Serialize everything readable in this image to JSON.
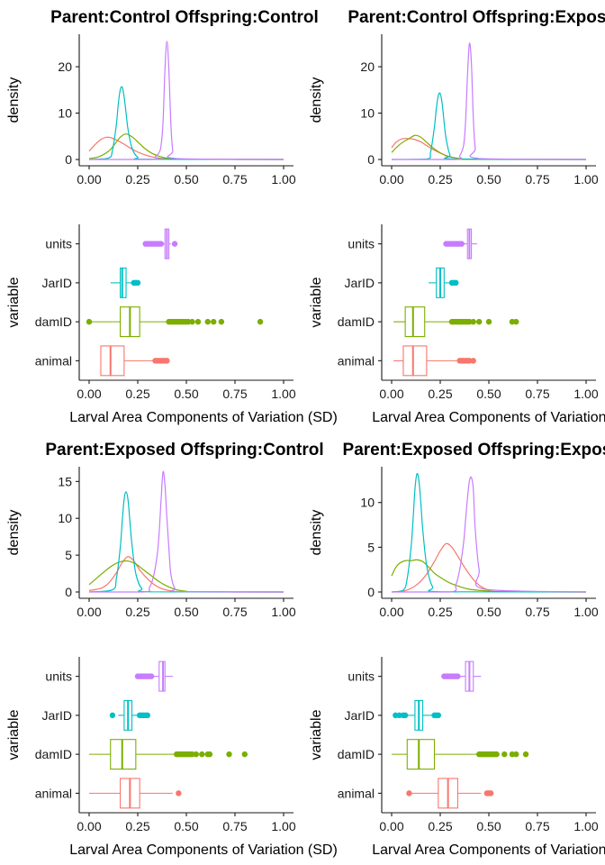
{
  "chart_data": [
    {
      "type": "density",
      "title": "Parent:Control Offspring:Control",
      "ylabel": "density",
      "xlim": [
        0,
        1
      ],
      "ylim": [
        0,
        27
      ],
      "yticks": [
        0,
        10,
        20
      ],
      "xticks": [
        "0.00",
        "0.25",
        "0.50",
        "0.75",
        "1.00"
      ],
      "series": [
        {
          "name": "animal",
          "color": "#F8766D",
          "x": [
            0,
            0.03,
            0.06,
            0.09,
            0.12,
            0.15,
            0.18,
            0.21,
            0.24,
            0.28,
            0.32,
            0.36,
            0.4,
            0.45,
            1.0
          ],
          "y": [
            1.8,
            3.2,
            4.3,
            4.8,
            4.6,
            4.0,
            3.3,
            2.5,
            1.8,
            1.1,
            0.6,
            0.3,
            0.15,
            0.05,
            0
          ]
        },
        {
          "name": "damID",
          "color": "#7CAE00",
          "x": [
            0,
            0.05,
            0.1,
            0.13,
            0.16,
            0.19,
            0.22,
            0.25,
            0.28,
            0.32,
            0.36,
            0.4,
            0.45,
            0.55,
            1.0
          ],
          "y": [
            0.2,
            0.6,
            1.8,
            3.2,
            4.8,
            5.5,
            4.9,
            3.8,
            2.6,
            1.4,
            0.7,
            0.3,
            0.1,
            0.02,
            0
          ]
        },
        {
          "name": "JarID",
          "color": "#00BFC4",
          "x": [
            0,
            0.1,
            0.12,
            0.14,
            0.15,
            0.16,
            0.17,
            0.18,
            0.19,
            0.2,
            0.22,
            0.25,
            0.3,
            1.0
          ],
          "y": [
            0,
            0.3,
            2.0,
            7.5,
            12.0,
            15.0,
            15.6,
            13.5,
            10.0,
            6.5,
            2.5,
            0.5,
            0.05,
            0
          ]
        },
        {
          "name": "units",
          "color": "#C77CFF",
          "x": [
            0,
            0.32,
            0.34,
            0.36,
            0.37,
            0.38,
            0.39,
            0.4,
            0.41,
            0.42,
            0.43,
            0.45,
            1.0
          ],
          "y": [
            0,
            0,
            0.6,
            1.5,
            3.0,
            8.0,
            19.5,
            25.5,
            19.5,
            8.0,
            2.0,
            0.2,
            0
          ]
        }
      ]
    },
    {
      "type": "density",
      "title": "Parent:Control Offspring:Exposed",
      "ylabel": "density",
      "xlim": [
        0,
        1
      ],
      "ylim": [
        0,
        27
      ],
      "yticks": [
        0,
        10,
        20
      ],
      "xticks": [
        "0.00",
        "0.25",
        "0.50",
        "0.75",
        "1.00"
      ],
      "series": [
        {
          "name": "animal",
          "color": "#F8766D",
          "x": [
            0,
            0.02,
            0.04,
            0.06,
            0.09,
            0.12,
            0.15,
            0.18,
            0.22,
            0.26,
            0.3,
            0.35,
            0.4,
            1.0
          ],
          "y": [
            2.5,
            3.6,
            4.2,
            4.5,
            4.5,
            4.3,
            3.8,
            3.0,
            2.0,
            1.2,
            0.6,
            0.2,
            0.05,
            0
          ]
        },
        {
          "name": "damID",
          "color": "#7CAE00",
          "x": [
            0,
            0.03,
            0.06,
            0.09,
            0.12,
            0.15,
            0.18,
            0.21,
            0.24,
            0.28,
            0.32,
            0.36,
            0.42,
            1.0
          ],
          "y": [
            1.5,
            2.8,
            3.8,
            4.5,
            5.2,
            4.8,
            3.7,
            2.6,
            1.7,
            0.8,
            0.4,
            0.15,
            0.02,
            0
          ]
        },
        {
          "name": "JarID",
          "color": "#00BFC4",
          "x": [
            0,
            0.18,
            0.2,
            0.22,
            0.23,
            0.24,
            0.25,
            0.26,
            0.27,
            0.28,
            0.3,
            0.33,
            1.0
          ],
          "y": [
            0,
            0.1,
            1.5,
            7.0,
            11.0,
            13.8,
            14.2,
            12.0,
            8.0,
            4.5,
            1.0,
            0.1,
            0
          ]
        },
        {
          "name": "units",
          "color": "#C77CFF",
          "x": [
            0,
            0.33,
            0.35,
            0.37,
            0.38,
            0.39,
            0.4,
            0.41,
            0.42,
            0.43,
            0.45,
            1.0
          ],
          "y": [
            0,
            0,
            0.8,
            3.0,
            8.0,
            18.0,
            25.0,
            21.0,
            9.0,
            2.5,
            0.2,
            0
          ]
        }
      ]
    },
    {
      "type": "boxplot",
      "xlabel": "Larval Area Components of Variation (SD)",
      "ylabel": "variable",
      "xlim": [
        0,
        1
      ],
      "xticks": [
        "0.00",
        "0.25",
        "0.50",
        "0.75",
        "1.00"
      ],
      "categories": [
        "units",
        "JarID",
        "damID",
        "animal"
      ],
      "boxes": [
        {
          "name": "units",
          "color": "#C77CFF",
          "min": 0.38,
          "q1": 0.39,
          "median": 0.4,
          "q3": 0.41,
          "max": 0.42,
          "outliers": [
            0.29,
            0.3,
            0.31,
            0.32,
            0.33,
            0.34,
            0.35,
            0.36,
            0.37,
            0.44
          ]
        },
        {
          "name": "JarID",
          "color": "#00BFC4",
          "min": 0.11,
          "q1": 0.16,
          "median": 0.17,
          "q3": 0.19,
          "max": 0.25,
          "outliers": [
            0.23,
            0.24,
            0.25
          ]
        },
        {
          "name": "damID",
          "color": "#7CAE00",
          "min": 0.01,
          "q1": 0.16,
          "median": 0.21,
          "q3": 0.26,
          "max": 0.4,
          "outliers": [
            0.0,
            0.41,
            0.42,
            0.43,
            0.44,
            0.45,
            0.46,
            0.47,
            0.48,
            0.49,
            0.5,
            0.51,
            0.53,
            0.56,
            0.61,
            0.64,
            0.68,
            0.88
          ]
        },
        {
          "name": "animal",
          "color": "#F8766D",
          "min": 0.06,
          "q1": 0.06,
          "median": 0.11,
          "q3": 0.18,
          "max": 0.34,
          "outliers": [
            0.34,
            0.35,
            0.36,
            0.37,
            0.38,
            0.39,
            0.4
          ]
        }
      ]
    },
    {
      "type": "boxplot",
      "xlabel": "Larval Area Components of Variation (SD)",
      "ylabel": "variable",
      "xlim": [
        0,
        1
      ],
      "xticks": [
        "0.00",
        "0.25",
        "0.50",
        "0.75",
        "1.00"
      ],
      "categories": [
        "units",
        "JarID",
        "damID",
        "animal"
      ],
      "boxes": [
        {
          "name": "units",
          "color": "#C77CFF",
          "min": 0.37,
          "q1": 0.39,
          "median": 0.4,
          "q3": 0.41,
          "max": 0.44,
          "outliers": [
            0.28,
            0.29,
            0.3,
            0.31,
            0.32,
            0.33,
            0.34,
            0.35,
            0.36
          ]
        },
        {
          "name": "JarID",
          "color": "#00BFC4",
          "min": 0.19,
          "q1": 0.23,
          "median": 0.25,
          "q3": 0.27,
          "max": 0.3,
          "outliers": [
            0.31,
            0.32,
            0.33
          ]
        },
        {
          "name": "damID",
          "color": "#7CAE00",
          "min": 0.01,
          "q1": 0.07,
          "median": 0.11,
          "q3": 0.17,
          "max": 0.3,
          "outliers": [
            0.31,
            0.32,
            0.33,
            0.34,
            0.35,
            0.36,
            0.37,
            0.38,
            0.39,
            0.4,
            0.42,
            0.45,
            0.5,
            0.62,
            0.64
          ]
        },
        {
          "name": "animal",
          "color": "#F8766D",
          "min": 0.01,
          "q1": 0.06,
          "median": 0.11,
          "q3": 0.18,
          "max": 0.34,
          "outliers": [
            0.35,
            0.36,
            0.37,
            0.38,
            0.39,
            0.4,
            0.42
          ]
        }
      ]
    },
    {
      "type": "density",
      "title": "Parent:Exposed Offspring:Control",
      "ylabel": "density",
      "xlim": [
        0,
        1
      ],
      "ylim": [
        0,
        17
      ],
      "yticks": [
        0,
        5,
        10,
        15
      ],
      "xticks": [
        "0.00",
        "0.25",
        "0.50",
        "0.75",
        "1.00"
      ],
      "series": [
        {
          "name": "animal",
          "color": "#F8766D",
          "x": [
            0,
            0.06,
            0.1,
            0.14,
            0.17,
            0.2,
            0.23,
            0.26,
            0.3,
            0.34,
            0.38,
            0.42,
            0.48,
            1.0
          ],
          "y": [
            0.2,
            0.5,
            1.2,
            2.6,
            4.0,
            4.8,
            4.2,
            3.0,
            1.8,
            0.9,
            0.4,
            0.15,
            0.02,
            0
          ]
        },
        {
          "name": "damID",
          "color": "#7CAE00",
          "x": [
            0,
            0.04,
            0.08,
            0.12,
            0.16,
            0.2,
            0.24,
            0.28,
            0.32,
            0.36,
            0.4,
            0.45,
            0.5,
            0.55,
            1.0
          ],
          "y": [
            1.0,
            1.9,
            2.8,
            3.6,
            4.1,
            4.2,
            3.8,
            3.0,
            2.2,
            1.4,
            0.8,
            0.3,
            0.1,
            0.02,
            0
          ]
        },
        {
          "name": "JarID",
          "color": "#00BFC4",
          "x": [
            0,
            0.12,
            0.14,
            0.16,
            0.17,
            0.18,
            0.19,
            0.2,
            0.21,
            0.22,
            0.24,
            0.27,
            0.32,
            1.0
          ],
          "y": [
            0,
            0.3,
            1.8,
            6.0,
            9.5,
            12.6,
            13.6,
            12.5,
            9.5,
            6.5,
            2.5,
            0.5,
            0.02,
            0
          ]
        },
        {
          "name": "units",
          "color": "#C77CFF",
          "x": [
            0,
            0.28,
            0.31,
            0.33,
            0.35,
            0.36,
            0.37,
            0.38,
            0.39,
            0.4,
            0.41,
            0.42,
            0.44,
            0.47,
            1.0
          ],
          "y": [
            0,
            0,
            0.6,
            2.0,
            5.0,
            8.0,
            12.5,
            16.3,
            14.5,
            10.0,
            6.0,
            2.5,
            0.5,
            0.05,
            0
          ]
        }
      ]
    },
    {
      "type": "density",
      "title": "Parent:Exposed Offspring:Exposed",
      "ylabel": "density",
      "xlim": [
        0,
        1
      ],
      "ylim": [
        0,
        14
      ],
      "yticks": [
        0,
        5,
        10
      ],
      "xticks": [
        "0.00",
        "0.25",
        "0.50",
        "0.75",
        "1.00"
      ],
      "series": [
        {
          "name": "animal",
          "color": "#F8766D",
          "x": [
            0,
            0.06,
            0.1,
            0.14,
            0.18,
            0.22,
            0.25,
            0.28,
            0.31,
            0.34,
            0.38,
            0.42,
            0.46,
            0.5,
            0.55,
            1.0
          ],
          "y": [
            0,
            0.1,
            0.4,
            1.0,
            2.0,
            3.4,
            4.6,
            5.4,
            5.0,
            4.0,
            2.6,
            1.4,
            0.6,
            0.2,
            0.05,
            0
          ]
        },
        {
          "name": "damID",
          "color": "#7CAE00",
          "x": [
            0,
            0.02,
            0.04,
            0.07,
            0.1,
            0.13,
            0.16,
            0.19,
            0.22,
            0.26,
            0.3,
            0.35,
            0.4,
            0.5,
            0.6,
            1.0
          ],
          "y": [
            1.8,
            2.7,
            3.2,
            3.5,
            3.5,
            3.6,
            3.4,
            2.8,
            2.1,
            1.5,
            1.0,
            0.6,
            0.3,
            0.1,
            0.02,
            0
          ]
        },
        {
          "name": "JarID",
          "color": "#00BFC4",
          "x": [
            0,
            0.06,
            0.08,
            0.1,
            0.11,
            0.12,
            0.13,
            0.14,
            0.15,
            0.16,
            0.18,
            0.21,
            0.26,
            1.0
          ],
          "y": [
            0,
            0.2,
            1.5,
            5.0,
            8.0,
            11.5,
            13.2,
            12.5,
            10.0,
            7.0,
            3.0,
            0.6,
            0.02,
            0
          ]
        },
        {
          "name": "units",
          "color": "#C77CFF",
          "x": [
            0,
            0.3,
            0.33,
            0.35,
            0.37,
            0.38,
            0.39,
            0.4,
            0.41,
            0.42,
            0.43,
            0.45,
            0.48,
            1.0
          ],
          "y": [
            0,
            0,
            0.8,
            2.5,
            5.5,
            8.0,
            10.5,
            12.4,
            12.8,
            11.5,
            7.0,
            2.5,
            0.3,
            0
          ]
        }
      ]
    },
    {
      "type": "boxplot",
      "xlabel": "Larval Area Components of Variation (SD)",
      "ylabel": "variable",
      "xlim": [
        0,
        1
      ],
      "xticks": [
        "0.00",
        "0.25",
        "0.50",
        "0.75",
        "1.00"
      ],
      "categories": [
        "units",
        "JarID",
        "damID",
        "animal"
      ],
      "boxes": [
        {
          "name": "units",
          "color": "#C77CFF",
          "min": 0.33,
          "q1": 0.36,
          "median": 0.38,
          "q3": 0.39,
          "max": 0.43,
          "outliers": [
            0.25,
            0.26,
            0.27,
            0.28,
            0.29,
            0.3,
            0.31,
            0.32
          ]
        },
        {
          "name": "JarID",
          "color": "#00BFC4",
          "min": 0.15,
          "q1": 0.18,
          "median": 0.2,
          "q3": 0.22,
          "max": 0.26,
          "outliers": [
            0.12,
            0.26,
            0.27,
            0.28,
            0.29,
            0.3
          ]
        },
        {
          "name": "damID",
          "color": "#7CAE00",
          "min": 0.0,
          "q1": 0.11,
          "median": 0.17,
          "q3": 0.24,
          "max": 0.44,
          "outliers": [
            0.45,
            0.46,
            0.47,
            0.48,
            0.49,
            0.5,
            0.51,
            0.52,
            0.53,
            0.55,
            0.58,
            0.61,
            0.62,
            0.72,
            0.8
          ]
        },
        {
          "name": "animal",
          "color": "#F8766D",
          "min": 0.0,
          "q1": 0.16,
          "median": 0.21,
          "q3": 0.26,
          "max": 0.43,
          "outliers": [
            0.46
          ]
        }
      ]
    },
    {
      "type": "boxplot",
      "xlabel": "Larval Area Components of Variation (SD)",
      "ylabel": "variable",
      "xlim": [
        0,
        1
      ],
      "xticks": [
        "0.00",
        "0.25",
        "0.50",
        "0.75",
        "1.00"
      ],
      "categories": [
        "units",
        "JarID",
        "damID",
        "animal"
      ],
      "boxes": [
        {
          "name": "units",
          "color": "#C77CFF",
          "min": 0.35,
          "q1": 0.38,
          "median": 0.4,
          "q3": 0.42,
          "max": 0.46,
          "outliers": [
            0.27,
            0.28,
            0.29,
            0.3,
            0.31,
            0.32,
            0.33,
            0.34
          ]
        },
        {
          "name": "JarID",
          "color": "#00BFC4",
          "min": 0.08,
          "q1": 0.12,
          "median": 0.14,
          "q3": 0.16,
          "max": 0.21,
          "outliers": [
            0.02,
            0.04,
            0.06,
            0.07,
            0.22,
            0.23,
            0.24
          ]
        },
        {
          "name": "damID",
          "color": "#7CAE00",
          "min": 0.0,
          "q1": 0.08,
          "median": 0.14,
          "q3": 0.22,
          "max": 0.44,
          "outliers": [
            0.45,
            0.46,
            0.47,
            0.48,
            0.49,
            0.5,
            0.51,
            0.52,
            0.53,
            0.54,
            0.58,
            0.62,
            0.64,
            0.69
          ]
        },
        {
          "name": "animal",
          "color": "#F8766D",
          "min": 0.1,
          "q1": 0.24,
          "median": 0.29,
          "q3": 0.34,
          "max": 0.46,
          "outliers": [
            0.09,
            0.49,
            0.5,
            0.51
          ]
        }
      ]
    }
  ]
}
